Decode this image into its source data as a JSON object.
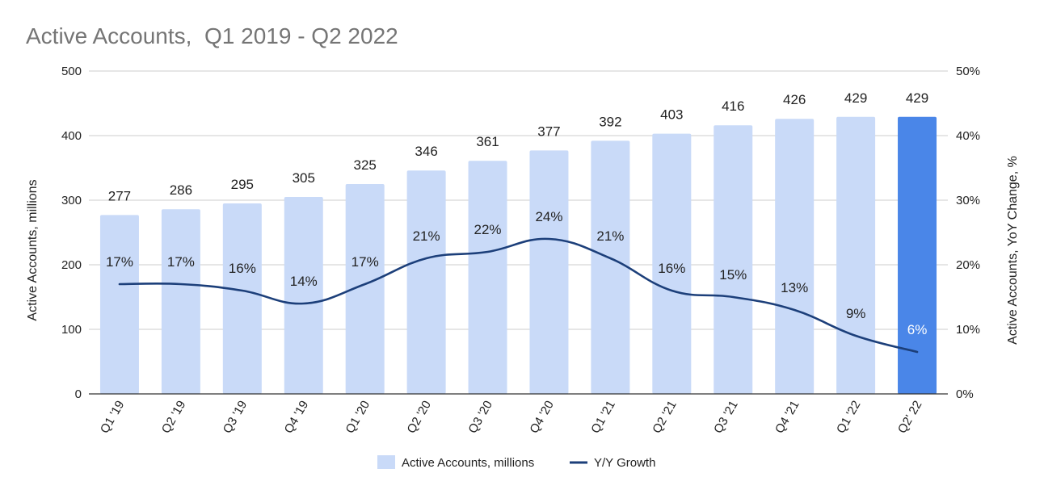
{
  "chart_data": {
    "type": "bar",
    "title": "Active Accounts,  Q1 2019 - Q2 2022",
    "categories": [
      "Q1 '19",
      "Q2 '19",
      "Q3 '19",
      "Q4 '19",
      "Q1 '20",
      "Q2 '20",
      "Q3 '20",
      "Q4 '20",
      "Q1 '21",
      "Q2 '21",
      "Q3 '21",
      "Q4 '21",
      "Q1 '22",
      "Q2' 22"
    ],
    "series": [
      {
        "name": "Active Accounts, millions",
        "type": "bar",
        "axis": "left",
        "values": [
          277,
          286,
          295,
          305,
          325,
          346,
          361,
          377,
          392,
          403,
          416,
          426,
          429,
          429
        ],
        "labels": [
          "277",
          "286",
          "295",
          "305",
          "325",
          "346",
          "361",
          "377",
          "392",
          "403",
          "416",
          "426",
          "429",
          "429"
        ],
        "color": "#c9daf8",
        "highlight_color": "#4a86e8",
        "highlight_index": 13
      },
      {
        "name": "Y/Y Growth",
        "type": "line",
        "axis": "right",
        "values": [
          17,
          17,
          16,
          14,
          17,
          21,
          22,
          24,
          21,
          16,
          15,
          13,
          9,
          6.5
        ],
        "labels": [
          "17%",
          "17%",
          "16%",
          "14%",
          "17%",
          "21%",
          "22%",
          "24%",
          "21%",
          "16%",
          "15%",
          "13%",
          "9%",
          "6%"
        ],
        "color": "#1c3f7a"
      }
    ],
    "ylabel": "Active Accounts, millions",
    "y2label": "Active Accounts, YoY Change, %",
    "ylim": [
      0,
      500
    ],
    "y2lim": [
      0,
      50
    ],
    "yticks": [
      0,
      100,
      200,
      300,
      400,
      500
    ],
    "yticklabels": [
      "0",
      "100",
      "200",
      "300",
      "400",
      "500"
    ],
    "y2ticks": [
      0,
      10,
      20,
      30,
      40,
      50
    ],
    "y2ticklabels": [
      "0%",
      "10%",
      "20%",
      "30%",
      "40%",
      "50%"
    ],
    "grid": true,
    "legend_position": "bottom-center"
  }
}
